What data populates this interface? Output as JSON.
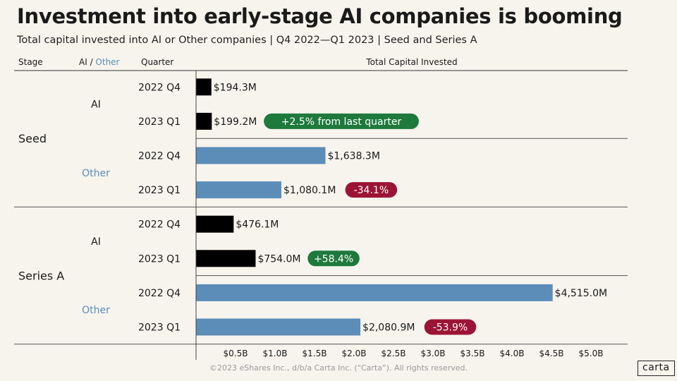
{
  "chart_data": {
    "type": "bar",
    "orientation": "horizontal",
    "title": "Investment into early-stage AI companies is booming",
    "subtitle": "Total capital invested into AI or Other companies |  Q4 2022—Q1 2023  | Seed and Series A",
    "headers": {
      "stage": "Stage",
      "ai": "AI /",
      "other": "Other",
      "quarter": "Quarter",
      "value": "Total Capital Invested"
    },
    "stages": [
      {
        "name": "Seed",
        "groups": [
          {
            "name": "AI",
            "color": "#000000",
            "bars": [
              {
                "quarter": "2022 Q4",
                "value": 194.3,
                "label": "$194.3M",
                "change": ""
              },
              {
                "quarter": "2023 Q1",
                "value": 199.2,
                "label": "$199.2M",
                "change": "+2.5% from last quarter",
                "change_color": "#1e7a3c"
              }
            ]
          },
          {
            "name": "Other",
            "color": "#5b8db8",
            "bars": [
              {
                "quarter": "2022 Q4",
                "value": 1638.3,
                "label": "$1,638.3M",
                "change": ""
              },
              {
                "quarter": "2023 Q1",
                "value": 1080.1,
                "label": "$1,080.1M",
                "change": "-34.1%",
                "change_color": "#9b1436"
              }
            ]
          }
        ]
      },
      {
        "name": "Series A",
        "groups": [
          {
            "name": "AI",
            "color": "#000000",
            "bars": [
              {
                "quarter": "2022 Q4",
                "value": 476.1,
                "label": "$476.1M",
                "change": ""
              },
              {
                "quarter": "2023 Q1",
                "value": 754.0,
                "label": "$754.0M",
                "change": "+58.4%",
                "change_color": "#1e7a3c"
              }
            ]
          },
          {
            "name": "Other",
            "color": "#5b8db8",
            "bars": [
              {
                "quarter": "2022 Q4",
                "value": 4515.0,
                "label": "$4,515.0M",
                "change": ""
              },
              {
                "quarter": "2023 Q1",
                "value": 2080.9,
                "label": "$2,080.9M",
                "change": "-53.9%",
                "change_color": "#9b1436"
              }
            ]
          }
        ]
      }
    ],
    "xaxis": {
      "unit": "$M",
      "ticks": [
        500,
        1000,
        1500,
        2000,
        2500,
        3000,
        3500,
        4000,
        4500,
        5000
      ],
      "tick_labels": [
        "$0.5B",
        "$1.0B",
        "$1.5B",
        "$2.0B",
        "$2.5B",
        "$3.0B",
        "$3.5B",
        "$4.0B",
        "$4.5B",
        "$5.0B"
      ],
      "xlim": [
        0,
        5000
      ]
    },
    "colors": {
      "ai": "#000000",
      "other": "#5b8db8",
      "positive": "#1e7a3c",
      "negative": "#9b1436"
    }
  },
  "footer": "©2023 eShares Inc., d/b/a Carta Inc. (“Carta”). All rights reserved.",
  "logo": "carta"
}
